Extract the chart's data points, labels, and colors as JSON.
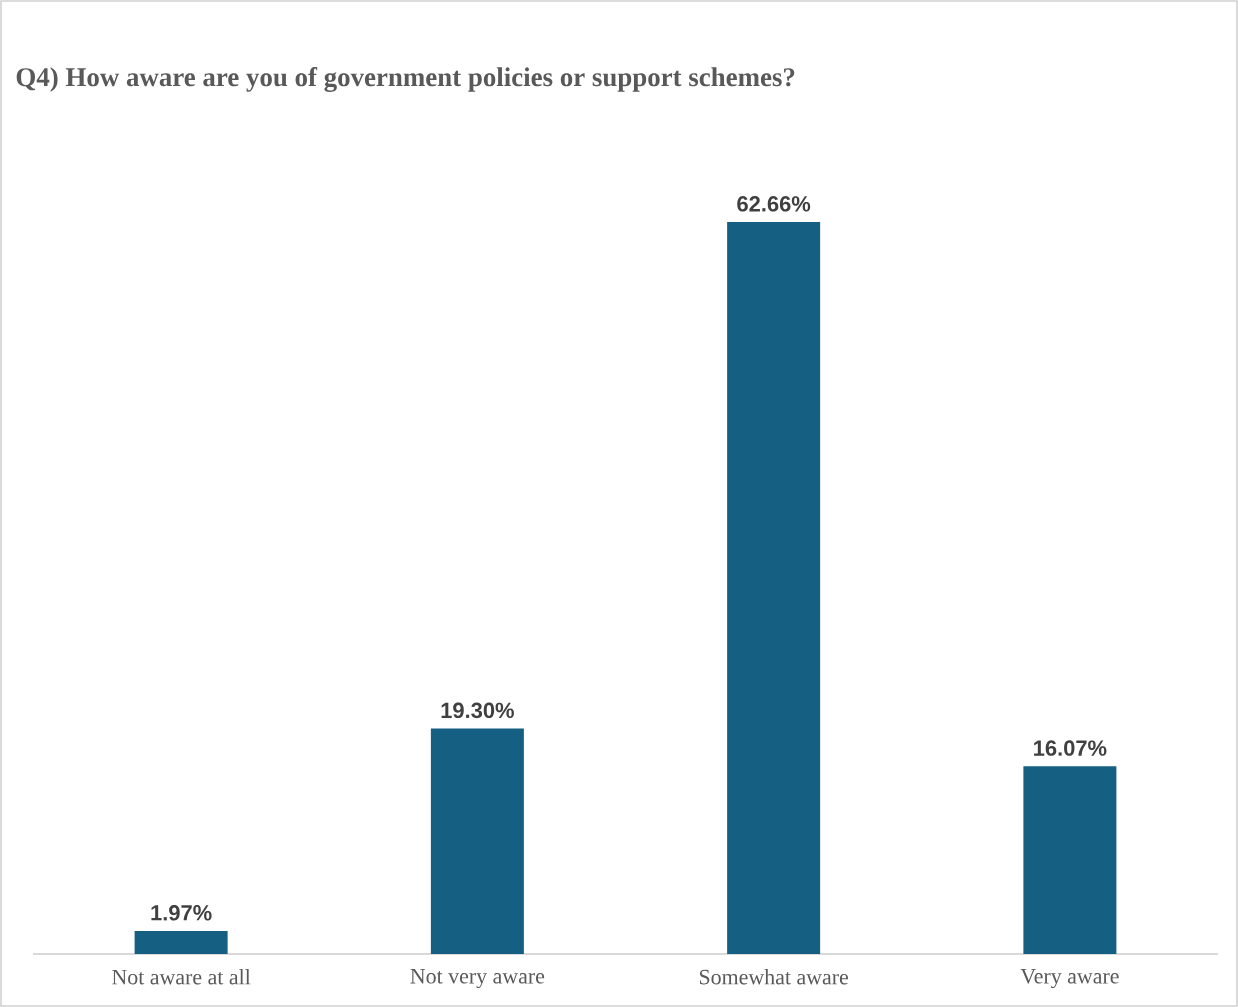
{
  "chart_data": {
    "type": "bar",
    "title": "Q4)  How aware are you of  government policies or support schemes?",
    "categories": [
      "Not aware at all",
      "Not very aware",
      "Somewhat aware",
      "Very aware"
    ],
    "values": [
      1.97,
      19.3,
      62.66,
      16.07
    ],
    "value_labels": [
      "1.97%",
      "19.30%",
      "62.66%",
      "16.07%"
    ],
    "color": "#155f82"
  }
}
